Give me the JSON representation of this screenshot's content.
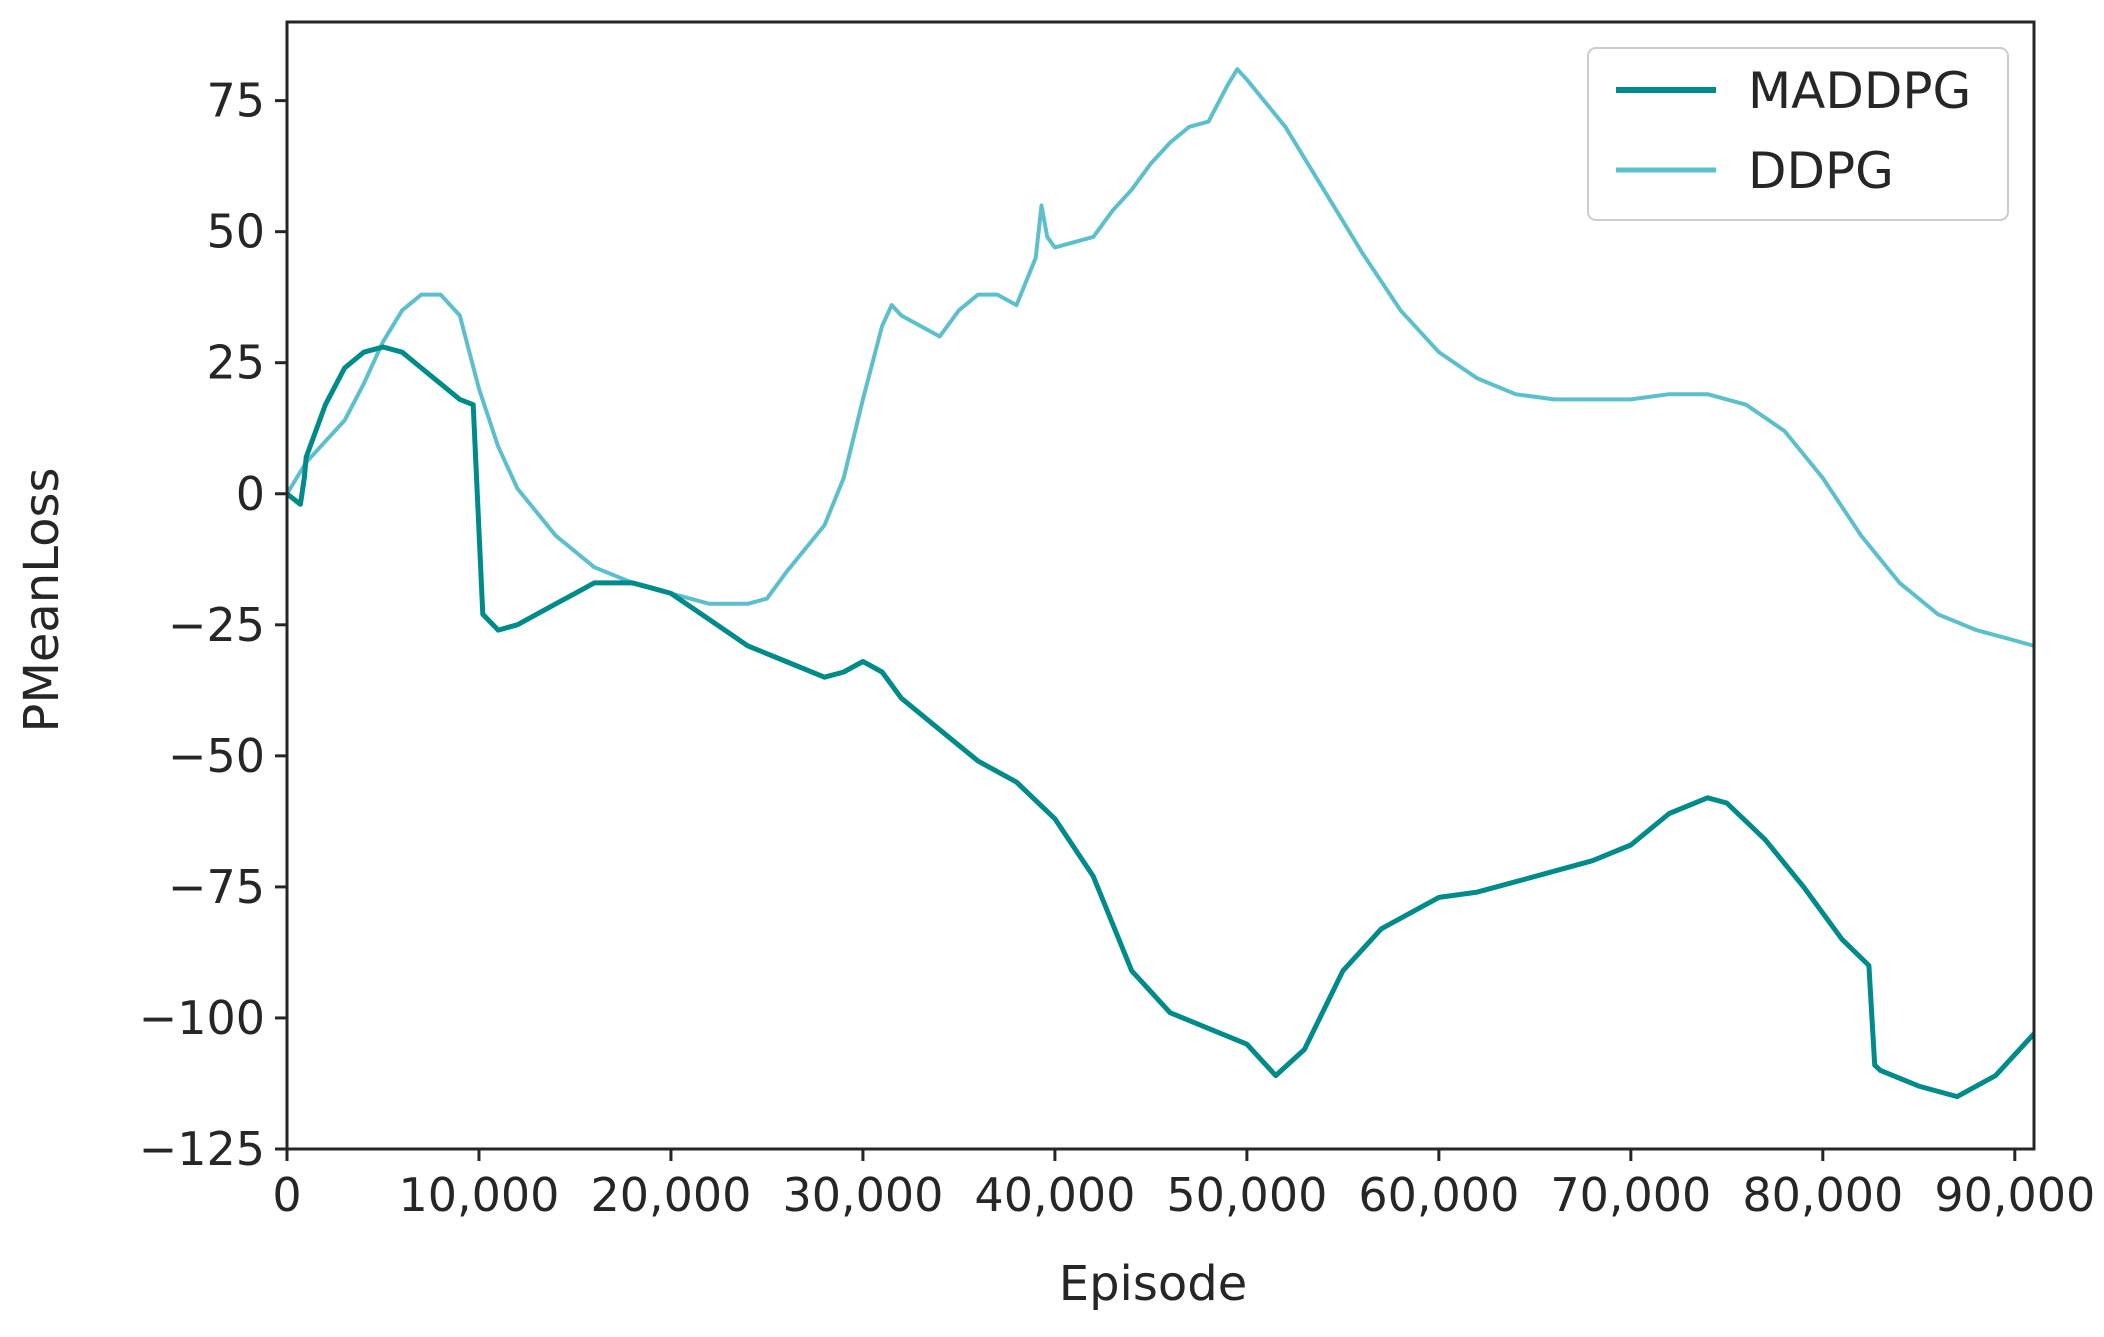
{
  "chart_data": {
    "type": "line",
    "title": "",
    "xlabel": "Episode",
    "ylabel": "PMeanLoss",
    "xlim": [
      0,
      91000
    ],
    "ylim": [
      -125,
      90
    ],
    "xticks": [
      0,
      10000,
      20000,
      30000,
      40000,
      50000,
      60000,
      70000,
      80000,
      90000
    ],
    "xtick_labels": [
      "0",
      "10,000",
      "20,000",
      "30,000",
      "40,000",
      "50,000",
      "60,000",
      "70,000",
      "80,000",
      "90,000"
    ],
    "yticks": [
      75,
      50,
      25,
      0,
      -25,
      -50,
      -75,
      -100,
      -125
    ],
    "ytick_labels": [
      "75",
      "50",
      "25",
      "0",
      "−25",
      "−50",
      "−75",
      "−100",
      "−125"
    ],
    "grid": false,
    "legend_position": "top-right",
    "series": [
      {
        "name": "MADDPG",
        "color": "#008b8b",
        "x": [
          0,
          700,
          900,
          1000,
          2000,
          3000,
          4000,
          5000,
          6000,
          7000,
          8000,
          9000,
          9700,
          10200,
          11000,
          12000,
          13000,
          14000,
          15000,
          16000,
          17000,
          18000,
          19000,
          20000,
          22000,
          24000,
          26000,
          28000,
          29000,
          30000,
          31000,
          32000,
          34000,
          36000,
          38000,
          40000,
          42000,
          44000,
          46000,
          48000,
          50000,
          51500,
          53000,
          55000,
          57000,
          60000,
          62000,
          64000,
          66000,
          68000,
          70000,
          72000,
          74000,
          75000,
          77000,
          79000,
          81000,
          82400,
          82700,
          83000,
          85000,
          87000,
          89000,
          91000
        ],
        "y": [
          0,
          -2,
          3,
          7,
          17,
          24,
          27,
          28,
          27,
          24,
          21,
          18,
          17,
          -23,
          -26,
          -25,
          -23,
          -21,
          -19,
          -17,
          -17,
          -17,
          -18,
          -19,
          -24,
          -29,
          -32,
          -35,
          -34,
          -32,
          -34,
          -39,
          -45,
          -51,
          -55,
          -62,
          -73,
          -91,
          -99,
          -102,
          -105,
          -111,
          -106,
          -91,
          -83,
          -77,
          -76,
          -74,
          -72,
          -70,
          -67,
          -61,
          -58,
          -59,
          -66,
          -75,
          -85,
          -90,
          -109,
          -110,
          -113,
          -115,
          -111,
          -103
        ]
      },
      {
        "name": "DDPG",
        "color": "#5bc0cc",
        "x": [
          0,
          500,
          1000,
          2000,
          3000,
          4000,
          5000,
          6000,
          7000,
          8000,
          9000,
          10000,
          11000,
          12000,
          14000,
          16000,
          18000,
          20000,
          22000,
          24000,
          25000,
          26000,
          28000,
          29000,
          30000,
          31000,
          31500,
          32000,
          33000,
          34000,
          35000,
          36000,
          37000,
          38000,
          39000,
          39300,
          39600,
          40000,
          41000,
          42000,
          43000,
          44000,
          45000,
          46000,
          47000,
          48000,
          49000,
          49500,
          50000,
          52000,
          54000,
          56000,
          58000,
          60000,
          62000,
          64000,
          66000,
          68000,
          70000,
          72000,
          74000,
          76000,
          78000,
          80000,
          82000,
          84000,
          86000,
          88000,
          90000,
          91000
        ],
        "y": [
          0,
          3,
          6,
          10,
          14,
          21,
          29,
          35,
          38,
          38,
          34,
          20,
          9,
          1,
          -8,
          -14,
          -17,
          -19,
          -21,
          -21,
          -20,
          -15,
          -6,
          3,
          18,
          32,
          36,
          34,
          32,
          30,
          35,
          38,
          38,
          36,
          45,
          55,
          49,
          47,
          48,
          49,
          54,
          58,
          63,
          67,
          70,
          71,
          78,
          81,
          79,
          70,
          58,
          46,
          35,
          27,
          22,
          19,
          18,
          18,
          18,
          19,
          19,
          17,
          12,
          3,
          -8,
          -17,
          -23,
          -26,
          -28,
          -29
        ]
      }
    ]
  }
}
